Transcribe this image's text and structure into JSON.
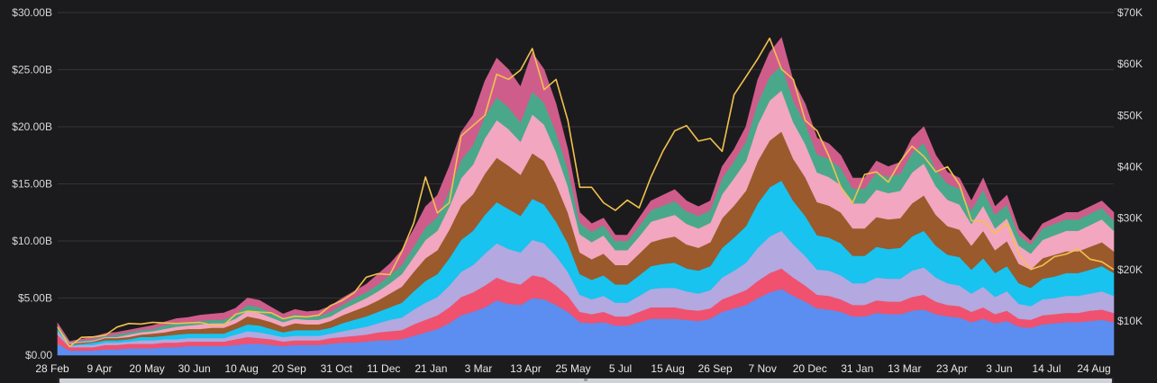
{
  "watermark_text": "",
  "chart_data": {
    "type": "area",
    "stacked": true,
    "title": "",
    "xlabel": "",
    "ylabel": "",
    "grid": true,
    "legend": "none",
    "y_left": {
      "range": [
        0,
        30000000000
      ],
      "ticks": [
        {
          "value": 0,
          "label": "$0.00"
        },
        {
          "value": 5000000000,
          "label": "$5.00B"
        },
        {
          "value": 10000000000,
          "label": "$10.00B"
        },
        {
          "value": 15000000000,
          "label": "$15.00B"
        },
        {
          "value": 20000000000,
          "label": "$20.00B"
        },
        {
          "value": 25000000000,
          "label": "$25.00B"
        },
        {
          "value": 30000000000,
          "label": "$30.00B"
        }
      ]
    },
    "y_right": {
      "range": [
        3340,
        70000
      ],
      "ticks": [
        {
          "value": 10000,
          "label": "$10K"
        },
        {
          "value": 20000,
          "label": "$20K"
        },
        {
          "value": 30000,
          "label": "$30K"
        },
        {
          "value": 40000,
          "label": "$40K"
        },
        {
          "value": 50000,
          "label": "$50K"
        },
        {
          "value": 60000,
          "label": "$60K"
        },
        {
          "value": 70000,
          "label": "$70K"
        }
      ]
    },
    "x_tick_labels": [
      "28 Feb",
      "9 Apr",
      "20 May",
      "30 Jun",
      "10 Aug",
      "20 Sep",
      "31 Oct",
      "11 Dec",
      "21 Jan",
      "3 Mar",
      "13 Apr",
      "25 May",
      "5 Jul",
      "15 Aug",
      "26 Sep",
      "7 Nov",
      "20 Dec",
      "31 Jan",
      "13 Mar",
      "23 Apr",
      "3 Jun",
      "14 Jul",
      "24 Aug"
    ],
    "x": [
      "28 Feb",
      "10 Mar",
      "20 Mar",
      "30 Mar",
      "9 Apr",
      "19 Apr",
      "29 Apr",
      "9 May",
      "20 May",
      "30 May",
      "10 Jun",
      "20 Jun",
      "30 Jun",
      "10 Jul",
      "20 Jul",
      "31 Jul",
      "10 Aug",
      "20 Aug",
      "31 Aug",
      "10 Sep",
      "20 Sep",
      "30 Sep",
      "10 Oct",
      "21 Oct",
      "31 Oct",
      "10 Nov",
      "20 Nov",
      "1 Dec",
      "11 Dec",
      "21 Dec",
      "31 Dec",
      "10 Jan",
      "21 Jan",
      "31 Jan",
      "10 Feb",
      "20 Feb",
      "3 Mar",
      "13 Mar",
      "23 Mar",
      "3 Apr",
      "13 Apr",
      "23 Apr",
      "3 May",
      "14 May",
      "25 May",
      "4 Jun",
      "14 Jun",
      "24 Jun",
      "5 Jul",
      "15 Jul",
      "25 Jul",
      "4 Aug",
      "15 Aug",
      "25 Aug",
      "4 Sep",
      "15 Sep",
      "26 Sep",
      "6 Oct",
      "16 Oct",
      "27 Oct",
      "7 Nov",
      "17 Nov",
      "27 Nov",
      "8 Dec",
      "20 Dec",
      "31 Dec",
      "10 Jan",
      "21 Jan",
      "31 Jan",
      "10 Feb",
      "21 Feb",
      "3 Mar",
      "13 Mar",
      "23 Mar",
      "2 Apr",
      "13 Apr",
      "23 Apr",
      "3 May",
      "13 May",
      "24 May",
      "3 Jun",
      "13 Jun",
      "23 Jun",
      "4 Jul",
      "14 Jul",
      "24 Jul",
      "3 Aug",
      "14 Aug",
      "24 Aug",
      "3 Sep"
    ],
    "stack_totals": [
      2.8,
      1.2,
      1.4,
      1.6,
      1.9,
      2.0,
      2.2,
      2.4,
      2.6,
      2.9,
      3.2,
      3.3,
      3.5,
      3.6,
      3.7,
      4.1,
      5.0,
      4.8,
      4.2,
      3.6,
      4.0,
      3.8,
      3.9,
      4.3,
      5.0,
      5.6,
      6.2,
      7.1,
      8.0,
      9.2,
      11.0,
      13.0,
      14.0,
      16.5,
      19.5,
      21.0,
      24.0,
      26.0,
      25.0,
      23.5,
      26.5,
      25.0,
      22.0,
      18.0,
      12.5,
      11.5,
      12.0,
      10.5,
      10.5,
      12.0,
      13.5,
      14.0,
      14.5,
      13.5,
      13.0,
      13.5,
      16.5,
      18.0,
      20.0,
      24.0,
      26.5,
      27.5,
      24.0,
      22.0,
      19.0,
      18.5,
      17.5,
      15.5,
      15.5,
      17.0,
      16.5,
      17.0,
      19.0,
      20.0,
      17.5,
      16.0,
      15.5,
      13.5,
      15.5,
      13.0,
      14.0,
      11.0,
      10.0,
      11.5,
      12.0,
      12.5,
      12.5,
      13.0,
      13.5,
      12.5
    ],
    "series": [
      {
        "color": "#5b8ef0",
        "values": [
          1.0,
          0.4,
          0.4,
          0.4,
          0.5,
          0.5,
          0.6,
          0.6,
          0.6,
          0.7,
          0.7,
          0.8,
          0.8,
          0.8,
          0.8,
          0.9,
          1.0,
          1.0,
          0.9,
          0.8,
          0.9,
          0.9,
          0.9,
          1.0,
          1.1,
          1.1,
          1.2,
          1.3,
          1.3,
          1.4,
          1.7,
          2.0,
          2.3,
          2.8,
          3.5,
          3.8,
          4.2,
          4.8,
          4.5,
          4.4,
          5.0,
          4.9,
          4.4,
          3.8,
          2.9,
          2.8,
          2.9,
          2.6,
          2.6,
          2.9,
          3.2,
          3.2,
          3.2,
          3.1,
          3.0,
          3.2,
          3.8,
          4.1,
          4.4,
          5.0,
          5.5,
          5.8,
          5.2,
          4.7,
          4.1,
          4.0,
          3.8,
          3.4,
          3.4,
          3.7,
          3.6,
          3.6,
          3.9,
          4.0,
          3.6,
          3.4,
          3.3,
          2.9,
          3.2,
          2.8,
          3.0,
          2.5,
          2.4,
          2.7,
          2.8,
          2.9,
          2.9,
          3.0,
          3.1,
          2.9
        ]
      },
      {
        "color": "#f0516f",
        "values": [
          0.8,
          0.3,
          0.3,
          0.3,
          0.4,
          0.4,
          0.4,
          0.4,
          0.4,
          0.4,
          0.4,
          0.4,
          0.4,
          0.4,
          0.4,
          0.5,
          0.6,
          0.5,
          0.5,
          0.4,
          0.4,
          0.4,
          0.4,
          0.5,
          0.5,
          0.6,
          0.6,
          0.7,
          0.8,
          0.8,
          1.0,
          1.1,
          1.2,
          1.4,
          1.6,
          1.7,
          1.9,
          2.0,
          1.9,
          1.8,
          2.0,
          1.9,
          1.7,
          1.4,
          0.9,
          0.8,
          0.9,
          0.8,
          0.8,
          0.9,
          1.0,
          1.0,
          1.0,
          0.9,
          0.9,
          0.9,
          1.1,
          1.2,
          1.3,
          1.5,
          1.7,
          1.8,
          1.6,
          1.4,
          1.2,
          1.2,
          1.1,
          1.0,
          1.0,
          1.1,
          1.1,
          1.1,
          1.2,
          1.3,
          1.1,
          1.0,
          1.0,
          0.9,
          1.0,
          0.8,
          0.9,
          0.7,
          0.7,
          0.8,
          0.8,
          0.8,
          0.8,
          0.9,
          0.9,
          0.8
        ]
      },
      {
        "color": "#b3a8df",
        "values": [
          0.3,
          0.1,
          0.2,
          0.2,
          0.2,
          0.2,
          0.2,
          0.3,
          0.3,
          0.3,
          0.3,
          0.3,
          0.3,
          0.3,
          0.3,
          0.4,
          0.5,
          0.5,
          0.4,
          0.4,
          0.4,
          0.4,
          0.4,
          0.4,
          0.5,
          0.6,
          0.7,
          0.8,
          1.0,
          1.1,
          1.3,
          1.5,
          1.6,
          1.9,
          2.2,
          2.4,
          2.8,
          3.0,
          2.9,
          2.8,
          3.1,
          3.0,
          2.6,
          2.1,
          1.5,
          1.3,
          1.4,
          1.2,
          1.2,
          1.4,
          1.6,
          1.7,
          1.7,
          1.6,
          1.5,
          1.6,
          1.9,
          2.1,
          2.4,
          2.9,
          3.2,
          3.3,
          2.9,
          2.6,
          2.2,
          2.2,
          2.1,
          1.9,
          1.9,
          2.0,
          2.0,
          2.0,
          2.3,
          2.4,
          2.1,
          1.9,
          1.8,
          1.6,
          1.8,
          1.5,
          1.7,
          1.3,
          1.2,
          1.4,
          1.4,
          1.5,
          1.5,
          1.5,
          1.6,
          1.5
        ]
      },
      {
        "color": "#18c3ef",
        "values": [
          0.2,
          0.1,
          0.1,
          0.2,
          0.2,
          0.2,
          0.2,
          0.3,
          0.3,
          0.3,
          0.4,
          0.4,
          0.4,
          0.4,
          0.4,
          0.5,
          0.6,
          0.6,
          0.5,
          0.4,
          0.5,
          0.5,
          0.5,
          0.5,
          0.7,
          0.8,
          0.9,
          1.0,
          1.1,
          1.3,
          1.6,
          1.9,
          2.0,
          2.4,
          2.8,
          3.0,
          3.4,
          3.6,
          3.5,
          3.2,
          3.6,
          3.4,
          3.0,
          2.5,
          1.8,
          1.7,
          1.8,
          1.6,
          1.6,
          1.8,
          2.0,
          2.1,
          2.2,
          2.0,
          2.0,
          2.1,
          2.6,
          2.9,
          3.2,
          3.9,
          4.3,
          4.4,
          3.8,
          3.5,
          3.0,
          2.9,
          2.8,
          2.4,
          2.4,
          2.7,
          2.6,
          2.7,
          3.0,
          3.2,
          2.8,
          2.5,
          2.5,
          2.1,
          2.5,
          2.1,
          2.2,
          1.8,
          1.6,
          1.8,
          1.9,
          2.0,
          2.0,
          2.1,
          2.2,
          2.0
        ]
      },
      {
        "color": "#9a5a2c",
        "values": [
          0.1,
          0.1,
          0.1,
          0.1,
          0.2,
          0.2,
          0.2,
          0.2,
          0.3,
          0.3,
          0.4,
          0.4,
          0.4,
          0.5,
          0.5,
          0.5,
          0.7,
          0.6,
          0.6,
          0.5,
          0.6,
          0.5,
          0.5,
          0.6,
          0.7,
          0.8,
          0.9,
          1.0,
          1.2,
          1.4,
          1.7,
          2.0,
          2.1,
          2.5,
          3.0,
          3.2,
          3.6,
          3.9,
          3.8,
          3.6,
          4.0,
          3.8,
          3.3,
          2.7,
          1.9,
          1.8,
          1.9,
          1.7,
          1.7,
          1.9,
          2.1,
          2.2,
          2.3,
          2.1,
          2.0,
          2.1,
          2.6,
          2.8,
          3.1,
          3.7,
          4.1,
          4.3,
          3.7,
          3.4,
          2.9,
          2.8,
          2.7,
          2.4,
          2.4,
          2.6,
          2.6,
          2.6,
          2.9,
          3.1,
          2.7,
          2.5,
          2.4,
          2.1,
          2.4,
          2.0,
          2.2,
          1.7,
          1.6,
          1.8,
          1.9,
          1.9,
          1.9,
          2.0,
          2.1,
          1.9
        ]
      },
      {
        "color": "#f2a6bf",
        "values": [
          0.1,
          0.1,
          0.1,
          0.1,
          0.1,
          0.1,
          0.2,
          0.2,
          0.2,
          0.3,
          0.3,
          0.3,
          0.4,
          0.4,
          0.4,
          0.4,
          0.5,
          0.5,
          0.4,
          0.4,
          0.4,
          0.4,
          0.4,
          0.4,
          0.5,
          0.6,
          0.7,
          0.8,
          0.9,
          1.1,
          1.3,
          1.6,
          1.7,
          2.0,
          2.4,
          2.6,
          3.1,
          3.3,
          3.2,
          2.9,
          3.4,
          3.2,
          2.8,
          2.3,
          1.6,
          1.5,
          1.6,
          1.3,
          1.3,
          1.5,
          1.8,
          1.8,
          1.9,
          1.8,
          1.7,
          1.7,
          2.1,
          2.4,
          2.6,
          3.2,
          3.5,
          3.6,
          3.2,
          2.9,
          2.6,
          2.5,
          2.4,
          2.2,
          2.2,
          2.4,
          2.3,
          2.4,
          2.7,
          2.8,
          2.5,
          2.3,
          2.2,
          1.9,
          2.2,
          1.9,
          2.0,
          1.6,
          1.4,
          1.6,
          1.7,
          1.8,
          1.8,
          1.9,
          2.0,
          1.8
        ]
      },
      {
        "color": "#4aa88a",
        "values": [
          0.1,
          0.05,
          0.1,
          0.1,
          0.1,
          0.2,
          0.2,
          0.2,
          0.2,
          0.3,
          0.3,
          0.3,
          0.3,
          0.3,
          0.3,
          0.4,
          0.5,
          0.5,
          0.4,
          0.3,
          0.4,
          0.3,
          0.3,
          0.4,
          0.4,
          0.5,
          0.5,
          0.6,
          0.7,
          0.8,
          0.9,
          1.1,
          1.2,
          1.4,
          1.6,
          1.7,
          1.9,
          2.0,
          1.9,
          1.7,
          2.0,
          1.9,
          1.7,
          1.5,
          1.0,
          0.9,
          0.9,
          0.8,
          0.8,
          0.9,
          1.0,
          1.1,
          1.2,
          1.1,
          1.1,
          1.1,
          1.4,
          1.5,
          1.7,
          1.9,
          2.1,
          2.2,
          1.9,
          1.8,
          1.6,
          1.6,
          1.5,
          1.3,
          1.3,
          1.5,
          1.4,
          1.5,
          1.7,
          1.8,
          1.5,
          1.4,
          1.4,
          1.2,
          1.4,
          1.2,
          1.2,
          0.9,
          0.8,
          1.0,
          1.0,
          1.0,
          1.0,
          1.0,
          1.0,
          0.9
        ]
      },
      {
        "color": "#cf5d8b",
        "values": [
          0.2,
          0.05,
          0.1,
          0.2,
          0.2,
          0.2,
          0.2,
          0.2,
          0.3,
          0.3,
          0.4,
          0.4,
          0.5,
          0.5,
          0.6,
          0.5,
          0.6,
          0.6,
          0.5,
          0.4,
          0.4,
          0.4,
          0.5,
          0.5,
          0.6,
          0.6,
          0.7,
          0.9,
          1.0,
          1.3,
          1.5,
          1.8,
          1.9,
          2.1,
          2.4,
          2.6,
          3.1,
          3.4,
          3.3,
          3.1,
          3.4,
          2.9,
          2.5,
          1.7,
          0.9,
          0.7,
          0.6,
          0.5,
          0.5,
          0.7,
          0.8,
          0.9,
          1.0,
          0.9,
          0.8,
          0.8,
          1.0,
          1.0,
          1.3,
          2.0,
          2.1,
          2.4,
          1.7,
          1.7,
          1.4,
          1.3,
          1.1,
          0.9,
          0.9,
          1.0,
          0.9,
          1.0,
          1.3,
          1.4,
          1.2,
          1.0,
          0.9,
          0.8,
          1.0,
          0.7,
          0.8,
          0.5,
          0.3,
          0.4,
          0.5,
          0.6,
          0.6,
          0.6,
          0.6,
          0.7
        ]
      }
    ],
    "price_line": {
      "axis": "right",
      "color": "#f2c14e",
      "values": [
        8800,
        5000,
        6800,
        6900,
        7200,
        8800,
        9500,
        9400,
        9700,
        9600,
        9500,
        9600,
        9700,
        9200,
        9200,
        11300,
        11900,
        11700,
        11600,
        10400,
        10900,
        10800,
        11100,
        13000,
        14000,
        15500,
        18500,
        19200,
        19000,
        23500,
        29000,
        38000,
        31000,
        33000,
        46000,
        48000,
        50000,
        58000,
        57000,
        58800,
        63000,
        55000,
        57000,
        49000,
        36000,
        36000,
        33000,
        31500,
        33500,
        32000,
        38000,
        43000,
        47000,
        48000,
        45000,
        45500,
        43000,
        54000,
        57500,
        61000,
        65000,
        59000,
        57000,
        49000,
        47000,
        42000,
        36000,
        33000,
        38500,
        39000,
        37000,
        41000,
        44000,
        42000,
        39000,
        40000,
        36500,
        29500,
        29500,
        27000,
        29000,
        23000,
        20000,
        20800,
        22500,
        23000,
        24000,
        22000,
        21500,
        20000
      ]
    }
  }
}
